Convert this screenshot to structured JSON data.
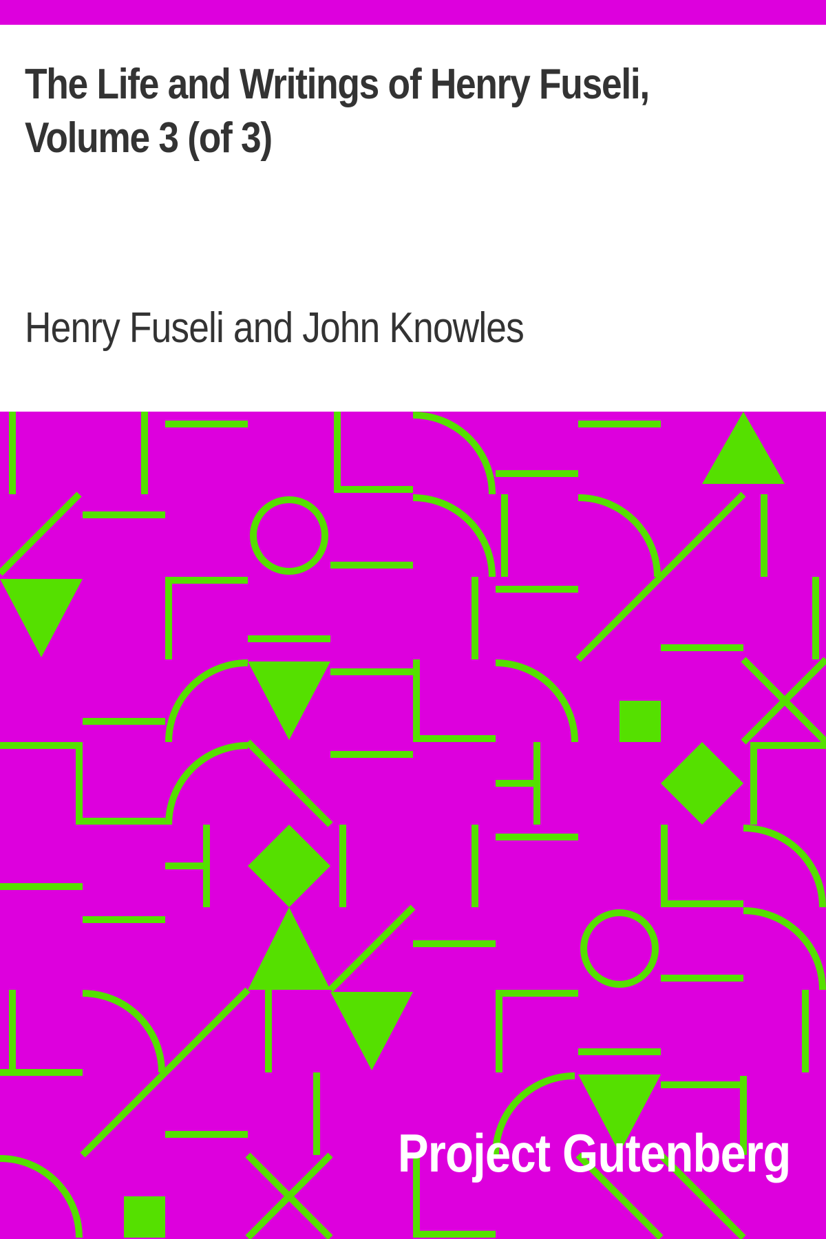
{
  "cover": {
    "title": "The Life and Writings of Henry Fuseli, Volume 3 (of 3)",
    "author": "Henry Fuseli and John Knowles",
    "publisher": "Project Gutenberg"
  },
  "colors": {
    "background": "#dd00dd",
    "pattern": "#55e000",
    "title_text": "#333333",
    "publisher_text": "#ffffff",
    "title_background": "#ffffff"
  }
}
